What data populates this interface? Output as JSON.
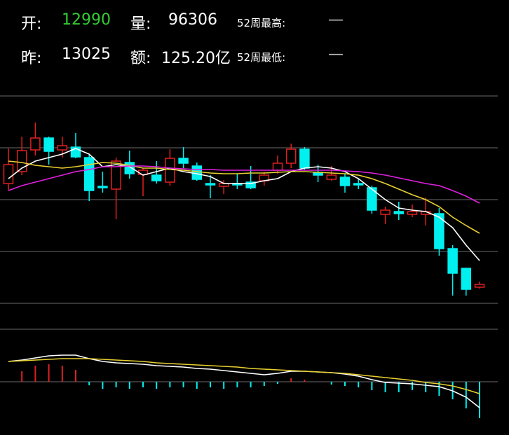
{
  "header": {
    "open_label": "开:",
    "open": 12990,
    "volume_label": "量:",
    "volume": 96306,
    "high52_label": "52周最高:",
    "high52": "—",
    "prev_label": "昨:",
    "prev": 13025,
    "amount_label": "额:",
    "amount": "125.20亿",
    "low52_label": "52周最低:",
    "low52": "—"
  },
  "chart_data": [
    {
      "type": "candlestick",
      "up_color": "#e02020",
      "down_color": "#00f0f0",
      "grid": true,
      "ylim": [
        0,
        296
      ],
      "yticks": [
        0,
        74,
        148,
        222,
        296
      ],
      "open": [
        171,
        188,
        219,
        236,
        219,
        223,
        208,
        167,
        163,
        201,
        184,
        183,
        173,
        207,
        196,
        171,
        167,
        171,
        173,
        175,
        190,
        200,
        220,
        187,
        177,
        180,
        171,
        165,
        127,
        131,
        127,
        127,
        128,
        78,
        50,
        23
      ],
      "high": [
        221,
        238,
        258,
        238,
        238,
        243,
        213,
        188,
        208,
        218,
        193,
        203,
        220,
        223,
        201,
        183,
        176,
        185,
        196,
        188,
        211,
        228,
        223,
        198,
        196,
        185,
        178,
        168,
        138,
        145,
        141,
        151,
        136,
        83,
        50,
        31
      ],
      "low": [
        161,
        183,
        211,
        198,
        208,
        207,
        146,
        158,
        120,
        178,
        153,
        171,
        168,
        193,
        175,
        150,
        156,
        163,
        163,
        168,
        185,
        193,
        190,
        173,
        175,
        158,
        163,
        128,
        113,
        119,
        123,
        111,
        68,
        11,
        11,
        21
      ],
      "close": [
        198,
        218,
        236,
        217,
        225,
        209,
        161,
        165,
        203,
        185,
        190,
        175,
        207,
        200,
        177,
        169,
        171,
        169,
        165,
        183,
        200,
        220,
        193,
        183,
        183,
        168,
        169,
        133,
        133,
        128,
        131,
        131,
        78,
        43,
        20,
        27
      ],
      "series": [
        {
          "color": "#ffffff",
          "values": [
            178,
            193,
            203,
            208,
            213,
            221,
            213,
            195,
            198,
            195,
            183,
            188,
            193,
            188,
            185,
            181,
            171,
            171,
            171,
            175,
            178,
            188,
            193,
            195,
            193,
            188,
            178,
            163,
            148,
            136,
            133,
            131,
            123,
            108,
            83,
            61
          ]
        },
        {
          "color": "#e8d030",
          "values": [
            203,
            201,
            197,
            195,
            193,
            195,
            198,
            201,
            200,
            197,
            193,
            193,
            191,
            190,
            188,
            186,
            185,
            185,
            186,
            186,
            187,
            188,
            188,
            187,
            186,
            185,
            183,
            178,
            171,
            163,
            155,
            148,
            138,
            123,
            111,
            100
          ]
        },
        {
          "color": "#e020e0",
          "values": [
            161,
            168,
            173,
            178,
            183,
            188,
            191,
            195,
            195,
            196,
            196,
            195,
            193,
            192,
            191,
            191,
            190,
            190,
            190,
            190,
            190,
            190,
            190,
            190,
            190,
            189,
            188,
            186,
            183,
            179,
            175,
            171,
            168,
            161,
            153,
            143
          ]
        }
      ]
    },
    {
      "type": "macd",
      "up_color": "#e02020",
      "down_color": "#00f0f0",
      "grid": true,
      "ylim": [
        -75,
        75
      ],
      "yticks": [
        0,
        75
      ],
      "values": [
        0,
        15,
        23,
        25,
        23,
        17,
        -5,
        -10,
        -8,
        -10,
        -8,
        -10,
        -8,
        -8,
        -10,
        -8,
        -10,
        -8,
        -8,
        -6,
        -3,
        5,
        3,
        0,
        -4,
        -6,
        -8,
        -12,
        -15,
        -15,
        -12,
        -15,
        -20,
        -25,
        -38,
        -52
      ],
      "series": [
        {
          "color": "#ffffff",
          "values": [
            29,
            31,
            34,
            37,
            38,
            38,
            33,
            29,
            27,
            26,
            25,
            23,
            22,
            21,
            19,
            18,
            16,
            14,
            12,
            10,
            12,
            15,
            15,
            14,
            13,
            11,
            8,
            3,
            -1,
            -2,
            -3,
            -5,
            -7,
            -13,
            -22,
            -37
          ]
        },
        {
          "color": "#e8d030",
          "values": [
            29,
            30,
            31,
            32,
            33,
            33,
            33,
            32,
            31,
            30,
            29,
            27,
            26,
            25,
            24,
            23,
            22,
            21,
            19,
            18,
            17,
            16,
            15,
            14,
            13,
            12,
            10,
            8,
            6,
            4,
            2,
            -1,
            -3,
            -6,
            -11,
            -17
          ]
        }
      ]
    }
  ]
}
